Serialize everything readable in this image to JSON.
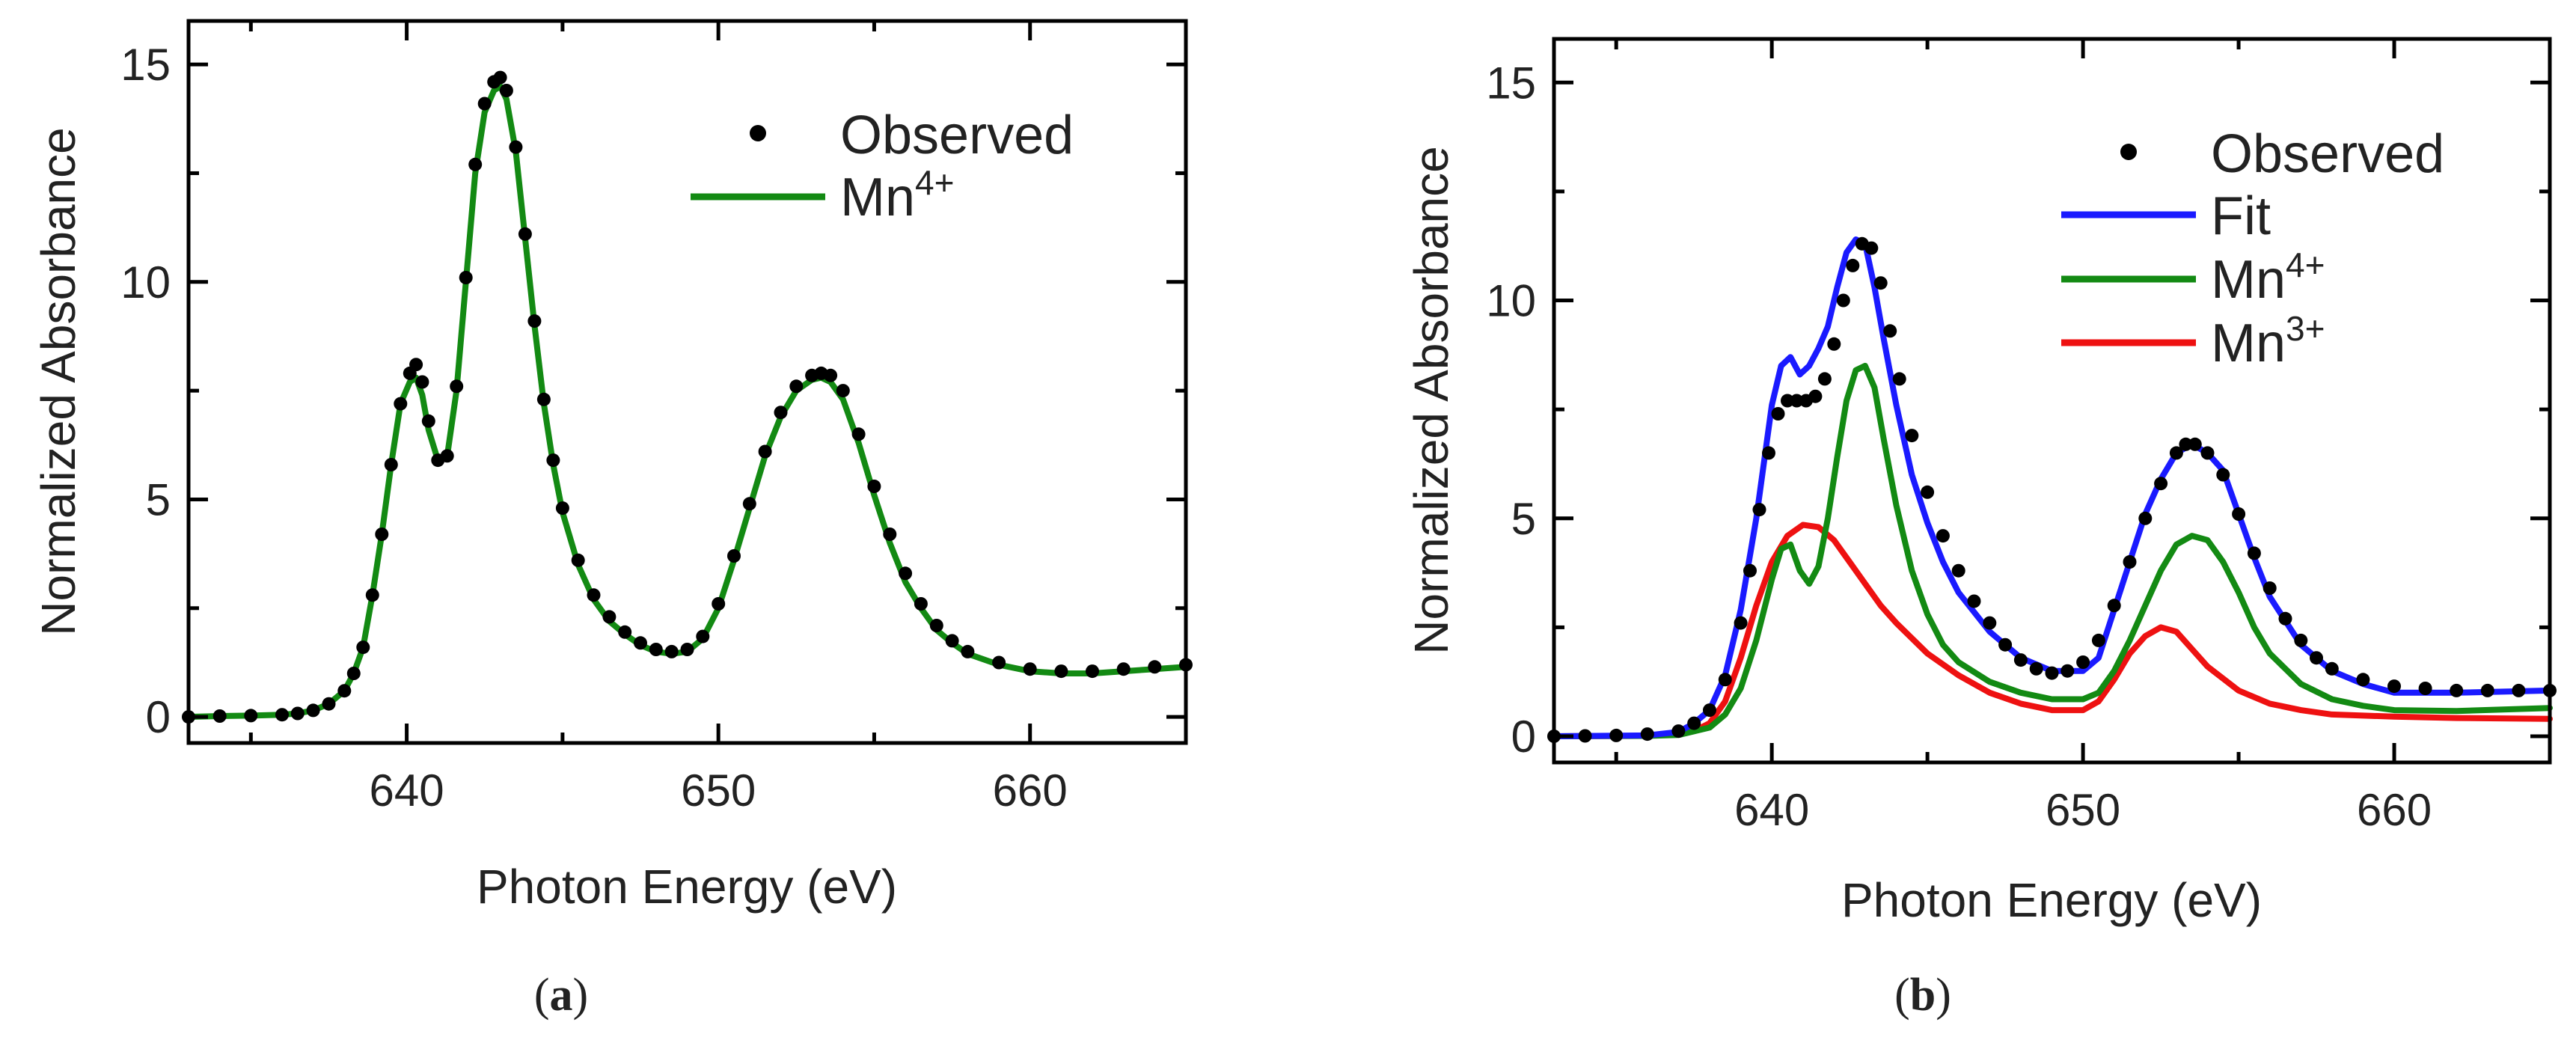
{
  "figure": {
    "panel_labels": [
      "(a)",
      "(b)"
    ]
  },
  "chart_data": [
    {
      "type": "line",
      "panel": "(a)",
      "xlabel": "Photon Energy (eV)",
      "ylabel": "Normalized Absorbance",
      "xlim": [
        633,
        665
      ],
      "ylim": [
        -0.6,
        16
      ],
      "xticks": [
        640,
        650,
        660
      ],
      "yticks": [
        0,
        5,
        10,
        15
      ],
      "legend_position": "top-right",
      "legend": [
        {
          "label": "Observed",
          "style": "dots",
          "color": "#000000"
        },
        {
          "label": "Mn",
          "sup": "4+",
          "style": "line",
          "color": "#138a13"
        }
      ],
      "series": [
        {
          "name": "Mn4+",
          "style": "line",
          "color": "#138a13",
          "x": [
            633,
            634,
            635,
            636,
            636.5,
            637,
            637.5,
            638,
            638.3,
            638.6,
            638.9,
            639.2,
            639.5,
            639.8,
            640.1,
            640.3,
            640.5,
            640.7,
            641,
            641.3,
            641.6,
            641.9,
            642.2,
            642.5,
            642.8,
            643,
            643.2,
            643.5,
            643.8,
            644.1,
            644.4,
            644.7,
            645,
            645.5,
            646,
            646.5,
            647,
            647.5,
            648,
            648.5,
            649,
            649.5,
            650,
            650.5,
            651,
            651.5,
            652,
            652.5,
            653,
            653.3,
            653.6,
            654,
            654.5,
            655,
            655.5,
            656,
            656.5,
            657,
            657.5,
            658,
            659,
            660,
            661,
            662,
            663,
            664,
            665
          ],
          "y": [
            0.0,
            0.02,
            0.03,
            0.05,
            0.08,
            0.15,
            0.3,
            0.6,
            1.0,
            1.6,
            2.8,
            4.2,
            5.8,
            7.2,
            7.7,
            7.8,
            7.4,
            6.6,
            5.9,
            6.0,
            7.5,
            10.0,
            12.5,
            13.9,
            14.4,
            14.5,
            14.2,
            13.0,
            11.0,
            9.0,
            7.2,
            5.8,
            4.7,
            3.5,
            2.7,
            2.2,
            1.9,
            1.65,
            1.5,
            1.45,
            1.5,
            1.8,
            2.5,
            3.6,
            4.8,
            6.0,
            6.9,
            7.5,
            7.75,
            7.8,
            7.7,
            7.3,
            6.3,
            5.1,
            4.0,
            3.1,
            2.5,
            2.0,
            1.7,
            1.45,
            1.2,
            1.05,
            1.0,
            1.0,
            1.05,
            1.1,
            1.15
          ]
        },
        {
          "name": "Observed",
          "style": "dots",
          "color": "#000000",
          "x": [
            633,
            634,
            635,
            636,
            636.5,
            637,
            637.5,
            638,
            638.3,
            638.6,
            638.9,
            639.2,
            639.5,
            639.8,
            640.1,
            640.3,
            640.5,
            640.7,
            641,
            641.3,
            641.6,
            641.9,
            642.2,
            642.5,
            642.8,
            643,
            643.2,
            643.5,
            643.8,
            644.1,
            644.4,
            644.7,
            645,
            645.5,
            646,
            646.5,
            647,
            647.5,
            648,
            648.5,
            649,
            649.5,
            650,
            650.5,
            651,
            651.5,
            652,
            652.5,
            653,
            653.3,
            653.6,
            654,
            654.5,
            655,
            655.5,
            656,
            656.5,
            657,
            657.5,
            658,
            659,
            660,
            661,
            662,
            663,
            664,
            665
          ],
          "y": [
            0.0,
            0.02,
            0.03,
            0.05,
            0.08,
            0.15,
            0.3,
            0.6,
            1.0,
            1.6,
            2.8,
            4.2,
            5.8,
            7.2,
            7.9,
            8.1,
            7.7,
            6.8,
            5.9,
            6.0,
            7.6,
            10.1,
            12.7,
            14.1,
            14.6,
            14.7,
            14.4,
            13.1,
            11.1,
            9.1,
            7.3,
            5.9,
            4.8,
            3.6,
            2.8,
            2.3,
            1.95,
            1.7,
            1.55,
            1.5,
            1.55,
            1.85,
            2.6,
            3.7,
            4.9,
            6.1,
            7.0,
            7.6,
            7.85,
            7.9,
            7.85,
            7.5,
            6.5,
            5.3,
            4.2,
            3.3,
            2.6,
            2.1,
            1.75,
            1.5,
            1.25,
            1.1,
            1.05,
            1.05,
            1.1,
            1.15,
            1.2
          ]
        }
      ]
    },
    {
      "type": "line",
      "panel": "(b)",
      "xlabel": "Photon Energy (eV)",
      "ylabel": "Normalized Absorbance",
      "xlim": [
        633,
        665
      ],
      "ylim": [
        -0.6,
        16
      ],
      "xticks": [
        640,
        650,
        660
      ],
      "yticks": [
        0,
        5,
        10,
        15
      ],
      "legend_position": "top-right",
      "legend": [
        {
          "label": "Observed",
          "style": "dots",
          "color": "#000000"
        },
        {
          "label": "Fit",
          "style": "line",
          "color": "#1a1aff"
        },
        {
          "label": "Mn",
          "sup": "4+",
          "style": "line",
          "color": "#138a13"
        },
        {
          "label": "Mn",
          "sup": "3+",
          "style": "line",
          "color": "#ee1111"
        }
      ],
      "series": [
        {
          "name": "Mn3+",
          "style": "line",
          "color": "#ee1111",
          "x": [
            633,
            636,
            637,
            637.5,
            638,
            638.5,
            639,
            639.5,
            640,
            640.5,
            641,
            641.5,
            642,
            642.5,
            643,
            643.5,
            644,
            645,
            646,
            647,
            648,
            649,
            650,
            650.5,
            651,
            651.5,
            652,
            652.5,
            653,
            653.5,
            654,
            655,
            656,
            657,
            658,
            660,
            662,
            665
          ],
          "y": [
            0.0,
            0.01,
            0.05,
            0.12,
            0.3,
            0.8,
            1.8,
            3.0,
            4.0,
            4.6,
            4.85,
            4.8,
            4.5,
            4.0,
            3.5,
            3.0,
            2.6,
            1.9,
            1.4,
            1.0,
            0.75,
            0.6,
            0.6,
            0.8,
            1.3,
            1.9,
            2.3,
            2.5,
            2.4,
            2.0,
            1.6,
            1.05,
            0.75,
            0.6,
            0.5,
            0.45,
            0.42,
            0.4
          ]
        },
        {
          "name": "Mn4+",
          "style": "line",
          "color": "#138a13",
          "x": [
            633,
            636,
            637,
            638,
            638.5,
            639,
            639.5,
            640,
            640.3,
            640.6,
            640.9,
            641.2,
            641.5,
            641.8,
            642.1,
            642.4,
            642.7,
            643,
            643.3,
            643.6,
            644,
            644.5,
            645,
            645.5,
            646,
            647,
            648,
            649,
            650,
            650.5,
            651,
            651.5,
            652,
            652.5,
            653,
            653.5,
            654,
            654.5,
            655,
            655.5,
            656,
            657,
            658,
            659,
            660,
            662,
            665
          ],
          "y": [
            0.0,
            0.01,
            0.03,
            0.2,
            0.5,
            1.1,
            2.2,
            3.6,
            4.3,
            4.4,
            3.8,
            3.5,
            3.9,
            5.0,
            6.4,
            7.7,
            8.4,
            8.5,
            8.0,
            6.8,
            5.3,
            3.8,
            2.8,
            2.1,
            1.7,
            1.25,
            1.0,
            0.85,
            0.85,
            1.0,
            1.5,
            2.2,
            3.0,
            3.8,
            4.4,
            4.6,
            4.5,
            4.0,
            3.3,
            2.5,
            1.9,
            1.2,
            0.85,
            0.7,
            0.6,
            0.58,
            0.65
          ]
        },
        {
          "name": "Fit",
          "style": "line",
          "color": "#1a1aff",
          "x": [
            633,
            636,
            637,
            637.5,
            638,
            638.5,
            639,
            639.5,
            640,
            640.3,
            640.6,
            640.9,
            641.2,
            641.5,
            641.8,
            642.1,
            642.4,
            642.7,
            643,
            643.3,
            643.6,
            644,
            644.5,
            645,
            645.5,
            646,
            647,
            648,
            649,
            650,
            650.5,
            651,
            651.5,
            652,
            652.5,
            653,
            653.5,
            654,
            654.5,
            655,
            655.5,
            656,
            657,
            658,
            659,
            660,
            662,
            665
          ],
          "y": [
            0.0,
            0.02,
            0.1,
            0.3,
            0.6,
            1.4,
            2.9,
            5.0,
            7.6,
            8.5,
            8.7,
            8.3,
            8.5,
            8.9,
            9.4,
            10.3,
            11.1,
            11.4,
            11.3,
            10.3,
            9.1,
            7.6,
            6.0,
            4.9,
            4.0,
            3.3,
            2.4,
            1.8,
            1.5,
            1.5,
            1.8,
            2.9,
            4.0,
            5.1,
            5.9,
            6.5,
            6.7,
            6.5,
            6.1,
            5.1,
            4.1,
            3.2,
            2.1,
            1.5,
            1.2,
            1.0,
            1.0,
            1.05
          ]
        },
        {
          "name": "Observed",
          "style": "dots",
          "color": "#000000",
          "x": [
            633,
            634,
            635,
            636,
            637,
            637.5,
            638,
            638.5,
            639,
            639.3,
            639.6,
            639.9,
            640.2,
            640.5,
            640.8,
            641.1,
            641.4,
            641.7,
            642,
            642.3,
            642.6,
            642.9,
            643.2,
            643.5,
            643.8,
            644.1,
            644.5,
            645,
            645.5,
            646,
            646.5,
            647,
            647.5,
            648,
            648.5,
            649,
            649.5,
            650,
            650.5,
            651,
            651.5,
            652,
            652.5,
            653,
            653.3,
            653.6,
            654,
            654.5,
            655,
            655.5,
            656,
            656.5,
            657,
            657.5,
            658,
            659,
            660,
            661,
            662,
            663,
            664,
            665
          ],
          "y": [
            0.0,
            0.01,
            0.02,
            0.05,
            0.12,
            0.3,
            0.6,
            1.3,
            2.6,
            3.8,
            5.2,
            6.5,
            7.4,
            7.7,
            7.7,
            7.7,
            7.8,
            8.2,
            9.0,
            10.0,
            10.8,
            11.3,
            11.2,
            10.4,
            9.3,
            8.2,
            6.9,
            5.6,
            4.6,
            3.8,
            3.1,
            2.6,
            2.1,
            1.75,
            1.55,
            1.45,
            1.5,
            1.7,
            2.2,
            3.0,
            4.0,
            5.0,
            5.8,
            6.5,
            6.7,
            6.7,
            6.5,
            6.0,
            5.1,
            4.2,
            3.4,
            2.7,
            2.2,
            1.8,
            1.55,
            1.3,
            1.15,
            1.1,
            1.05,
            1.05,
            1.05,
            1.05
          ]
        }
      ]
    }
  ]
}
